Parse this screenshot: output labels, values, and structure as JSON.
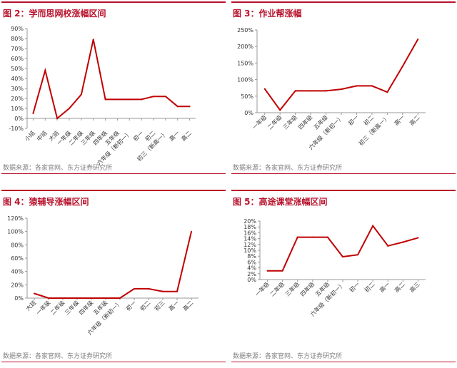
{
  "colors": {
    "accent": "#b8112b",
    "line": "#c00000",
    "axis": "#999999",
    "text": "#333333",
    "source": "#808080"
  },
  "chart_data": [
    {
      "type": "line",
      "title": "图 2：学而思网校涨幅区间",
      "source": "数据来源：各家官网、东方证券研究所",
      "categories": [
        "小班",
        "中班",
        "大班",
        "一年级",
        "二年级",
        "三年级",
        "四年级",
        "五年级",
        "六年级（新初一）",
        "初一",
        "初二",
        "初三（新高一）",
        "高一",
        "高二"
      ],
      "values": [
        5,
        48,
        0,
        10,
        24,
        79,
        19,
        19,
        19,
        19,
        22,
        22,
        12,
        12
      ],
      "ylim": [
        -10,
        90
      ],
      "yticks": [
        "-10%",
        "0%",
        "10%",
        "20%",
        "30%",
        "40%",
        "50%",
        "60%",
        "70%",
        "80%",
        "90%"
      ],
      "ytick_values": [
        -10,
        0,
        10,
        20,
        30,
        40,
        50,
        60,
        70,
        80,
        90
      ],
      "xlabel": "",
      "ylabel": "",
      "grid": false,
      "legend": "none"
    },
    {
      "type": "line",
      "title": "图 3：作业帮涨幅",
      "source": "数据来源：各家官网、东方证券研究所",
      "categories": [
        "一年级",
        "二年级",
        "三年级",
        "四年级",
        "五年级",
        "六年级（新初一）",
        "初一",
        "初二",
        "初三（新高一）",
        "高一",
        "高二"
      ],
      "values": [
        72,
        8,
        66,
        66,
        66,
        71,
        81,
        81,
        62,
        140,
        222
      ],
      "ylim": [
        0,
        250
      ],
      "yticks": [
        "0%",
        "50%",
        "100%",
        "150%",
        "200%",
        "250%"
      ],
      "ytick_values": [
        0,
        50,
        100,
        150,
        200,
        250
      ],
      "xlabel": "",
      "ylabel": "",
      "grid": false,
      "legend": "none"
    },
    {
      "type": "line",
      "title": "图 4：猿辅导涨幅区间",
      "source": "数据来源：各家官网、东方证券研究所",
      "categories": [
        "大班",
        "一年级",
        "二年级",
        "三年级",
        "四年级",
        "五年级",
        "六年级（新初一）",
        "初一",
        "初二",
        "初三",
        "高一",
        "高二"
      ],
      "values": [
        7,
        0,
        0,
        0,
        0,
        0,
        0,
        14,
        14,
        10,
        10,
        100
      ],
      "ylim": [
        0,
        120
      ],
      "yticks": [
        "0%",
        "20%",
        "40%",
        "60%",
        "80%",
        "100%",
        "120%"
      ],
      "ytick_values": [
        0,
        20,
        40,
        60,
        80,
        100,
        120
      ],
      "xlabel": "",
      "ylabel": "",
      "grid": false,
      "legend": "none"
    },
    {
      "type": "line",
      "title": "图 5：高途课堂涨幅区间",
      "source": "数据来源：各家官网、东方证券研究所",
      "categories": [
        "一年级",
        "二年级",
        "三年级",
        "四年级",
        "五年级",
        "六年级（新初一）",
        "初一",
        "初二",
        "高一",
        "高二",
        "高三"
      ],
      "values": [
        3,
        3,
        14.5,
        14.5,
        14.5,
        7.8,
        8.5,
        18.4,
        11.5,
        12.8,
        14.3
      ],
      "ylim": [
        0,
        20
      ],
      "yticks": [
        "0%",
        "2%",
        "4%",
        "6%",
        "8%",
        "10%",
        "12%",
        "14%",
        "16%",
        "18%",
        "20%"
      ],
      "ytick_values": [
        0,
        2,
        4,
        6,
        8,
        10,
        12,
        14,
        16,
        18,
        20
      ],
      "xlabel": "",
      "ylabel": "",
      "grid": false,
      "legend": "none"
    }
  ]
}
